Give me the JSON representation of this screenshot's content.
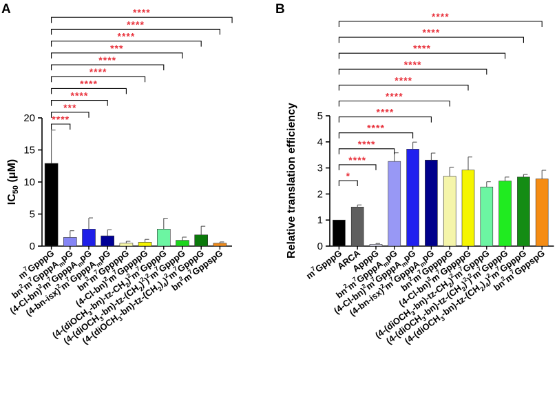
{
  "chart_data": [
    {
      "panel": "A",
      "type": "bar",
      "title": "",
      "xlabel": "",
      "ylabel": "IC50 (μM)",
      "ylim": [
        0,
        20
      ],
      "yticks": [
        0,
        5,
        10,
        15,
        20
      ],
      "grid": false,
      "categories": [
        "m7GpppG",
        "bn2m7GpppAmpG",
        "(4-Cl-bn)2m7GpppAmpG",
        "(4-bn-isx)2m7GpppAmpG",
        "bn2m7GppppG",
        "(4-Cl-bn)2m7GppppG",
        "(4-(diOCH3-bn)-tz-CH2)2m7GpppG",
        "(4-(diOCH3-bn)-tz-(CH2)2)2m7GpppG",
        "(4-(diOCH3-bn)-tz-(CH2)4)2m7GpppG",
        "bn2m7GppspG"
      ],
      "values": [
        12.9,
        1.35,
        2.65,
        1.6,
        0.45,
        0.6,
        2.65,
        0.9,
        1.75,
        0.45
      ],
      "errors": [
        5.2,
        1.05,
        1.75,
        0.95,
        0.3,
        0.45,
        1.7,
        0.5,
        1.35,
        0.2
      ],
      "colors": [
        "#000000",
        "#8585f5",
        "#1f1fe8",
        "#000096",
        "#f7f7a6",
        "#f5f500",
        "#6cf5a2",
        "#1dd51d",
        "#0b790b",
        "#f08a1a"
      ],
      "annotations": [
        {
          "from": 0,
          "to": 1,
          "label": "****"
        },
        {
          "from": 0,
          "to": 2,
          "label": "***"
        },
        {
          "from": 0,
          "to": 3,
          "label": "****"
        },
        {
          "from": 0,
          "to": 4,
          "label": "****"
        },
        {
          "from": 0,
          "to": 5,
          "label": "****"
        },
        {
          "from": 0,
          "to": 6,
          "label": "****"
        },
        {
          "from": 0,
          "to": 7,
          "label": "***"
        },
        {
          "from": 0,
          "to": 8,
          "label": "****"
        },
        {
          "from": 0,
          "to": 9,
          "label": "****"
        },
        {
          "from": 0,
          "to": 10,
          "label": "****"
        }
      ]
    },
    {
      "panel": "B",
      "type": "bar",
      "title": "",
      "xlabel": "",
      "ylabel": "Relative translation efficiency",
      "ylim": [
        0,
        5
      ],
      "yticks": [
        0,
        1,
        2,
        3,
        4,
        5
      ],
      "grid": false,
      "categories": [
        "m7GpppG",
        "ARCA",
        "ApppG",
        "bn2m7GpppAmpG",
        "(4-Cl-bn)2m7GpppAmpG",
        "(4-bn-isx)2m7GpppAmpG",
        "bn2m7GppppG",
        "(4-Cl-bn)2m7GppppG",
        "(4-(diOCH3-bn)-tz-CH2)2m7GpppG",
        "(4-(diOCH3-bn)-tz-(CH2)2)2m7GpppG",
        "(4-(diOCH3-bn)-tz-(CH2)4)2m7GpppG",
        "bn2m7GppspG"
      ],
      "values": [
        1.0,
        1.5,
        0.07,
        3.25,
        3.72,
        3.3,
        2.68,
        2.92,
        2.27,
        2.5,
        2.65,
        2.58
      ],
      "errors": [
        0.0,
        0.08,
        0.03,
        0.33,
        0.27,
        0.27,
        0.35,
        0.5,
        0.2,
        0.15,
        0.1,
        0.33
      ],
      "colors": [
        "#000000",
        "#5f5f5f",
        "#e0e0f5",
        "#9898f5",
        "#2020ef",
        "#00008c",
        "#f5f5aa",
        "#f5f500",
        "#6cf5a2",
        "#20eb20",
        "#148c14",
        "#f58c14"
      ],
      "annotations": [
        {
          "from": 0,
          "to": 1,
          "label": "*"
        },
        {
          "from": 0,
          "to": 2,
          "label": "****"
        },
        {
          "from": 0,
          "to": 3,
          "label": "****"
        },
        {
          "from": 0,
          "to": 4,
          "label": "****"
        },
        {
          "from": 0,
          "to": 5,
          "label": "****"
        },
        {
          "from": 0,
          "to": 6,
          "label": "****"
        },
        {
          "from": 0,
          "to": 7,
          "label": "****"
        },
        {
          "from": 0,
          "to": 8,
          "label": "****"
        },
        {
          "from": 0,
          "to": 9,
          "label": "****"
        },
        {
          "from": 0,
          "to": 10,
          "label": "****"
        },
        {
          "from": 0,
          "to": 11,
          "label": "****"
        }
      ]
    }
  ],
  "panels": {
    "a_label": "A",
    "b_label": "B"
  },
  "style": {
    "annotation_color": "#e8323c",
    "axis_color": "#000000"
  }
}
